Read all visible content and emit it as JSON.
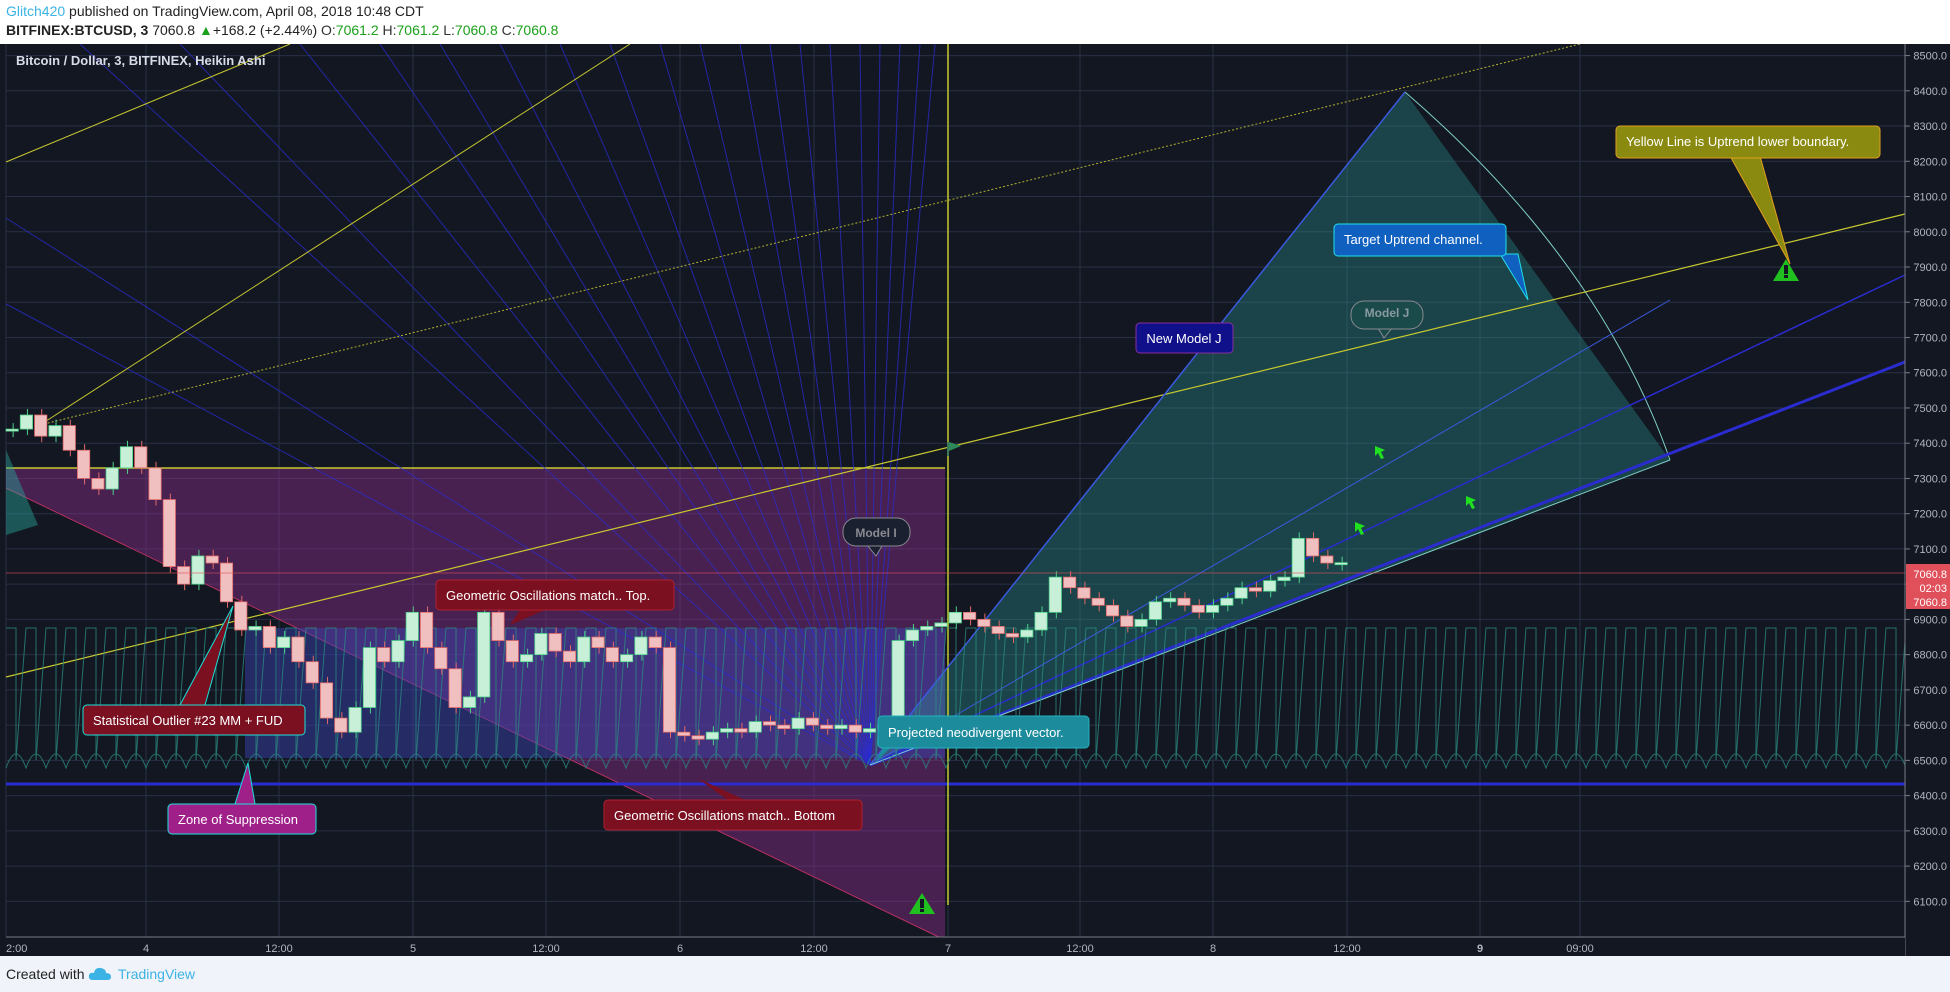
{
  "header": {
    "user": "Glitch420",
    "published": " published on TradingView.com, April 08, 2018 10:48 CDT",
    "symbol": "BITFINEX:BTCUSD, 3",
    "price": "7060.8",
    "change_arrow": "▲",
    "change": "+168.2 (+2.44%)",
    "o_label": "O:",
    "o_value": "7061.2",
    "h_label": "H:",
    "h_value": "7061.2",
    "l_label": "L:",
    "l_value": "7060.8",
    "c_label": "C:",
    "c_value": "7060.8"
  },
  "footer": {
    "created": "Created with",
    "brand": "TradingView",
    "logo_icon": "tradingview-cloud-icon"
  },
  "colors": {
    "background": "#131722",
    "grid": "#283044",
    "yellow": "#c8c830",
    "blue": "#2a2cd0",
    "purple_zone": "#8a2e8c",
    "blue_zone": "#3a44b8",
    "teal_fan": "#2aa59a",
    "price_badge": "#e0505a",
    "up": "#1aa01a"
  },
  "chart_data": {
    "type": "candlestick",
    "title": "Bitcoin / Dollar, 3, BITFINEX, Heikin Ashi",
    "y_ticks": [
      6100,
      6200,
      6300,
      6400,
      6500,
      6600,
      6700,
      6800,
      6900,
      7000,
      7100,
      7200,
      7300,
      7400,
      7500,
      7600,
      7700,
      7800,
      7900,
      8000,
      8100,
      8200,
      8300,
      8400,
      8500
    ],
    "ylim": [
      6030,
      8530
    ],
    "x_ticks": [
      "2:00",
      "4",
      "12:00",
      "5",
      "12:00",
      "6",
      "12:00",
      "7",
      "12:00",
      "8",
      "12:00",
      "9",
      "09:00"
    ],
    "last_price": "7060.8",
    "countdown": "02:03",
    "close_series": [
      7440,
      7480,
      7420,
      7450,
      7380,
      7300,
      7270,
      7330,
      7390,
      7330,
      7240,
      7050,
      7000,
      7080,
      7060,
      6950,
      6870,
      6880,
      6820,
      6850,
      6780,
      6720,
      6620,
      6580,
      6650,
      6820,
      6780,
      6840,
      6920,
      6820,
      6760,
      6650,
      6680,
      6920,
      6840,
      6780,
      6800,
      6860,
      6810,
      6780,
      6850,
      6820,
      6780,
      6800,
      6850,
      6820,
      6580,
      6570,
      6560,
      6580,
      6590,
      6580,
      6610,
      6600,
      6590,
      6620,
      6600,
      6590,
      6600,
      6580,
      6590,
      6600,
      6840,
      6870,
      6880,
      6890,
      6920,
      6900,
      6880,
      6860,
      6850,
      6870,
      6920,
      7020,
      6990,
      6960,
      6940,
      6910,
      6880,
      6900,
      6950,
      6960,
      6940,
      6920,
      6940,
      6960,
      6990,
      6980,
      7010,
      7020,
      7130,
      7080,
      7060,
      7061
    ],
    "annotations": [
      "Geometric Oscillations match.. Top.",
      "Statistical Outlier #23 MM + FUD",
      "Zone of Suppression",
      "Geometric Oscillations match.. Bottom",
      "Projected neodivergent vector.",
      "Model I",
      "New Model J",
      "Model J",
      "Target Uptrend channel.",
      "Yellow Line is Uptrend lower boundary."
    ]
  }
}
